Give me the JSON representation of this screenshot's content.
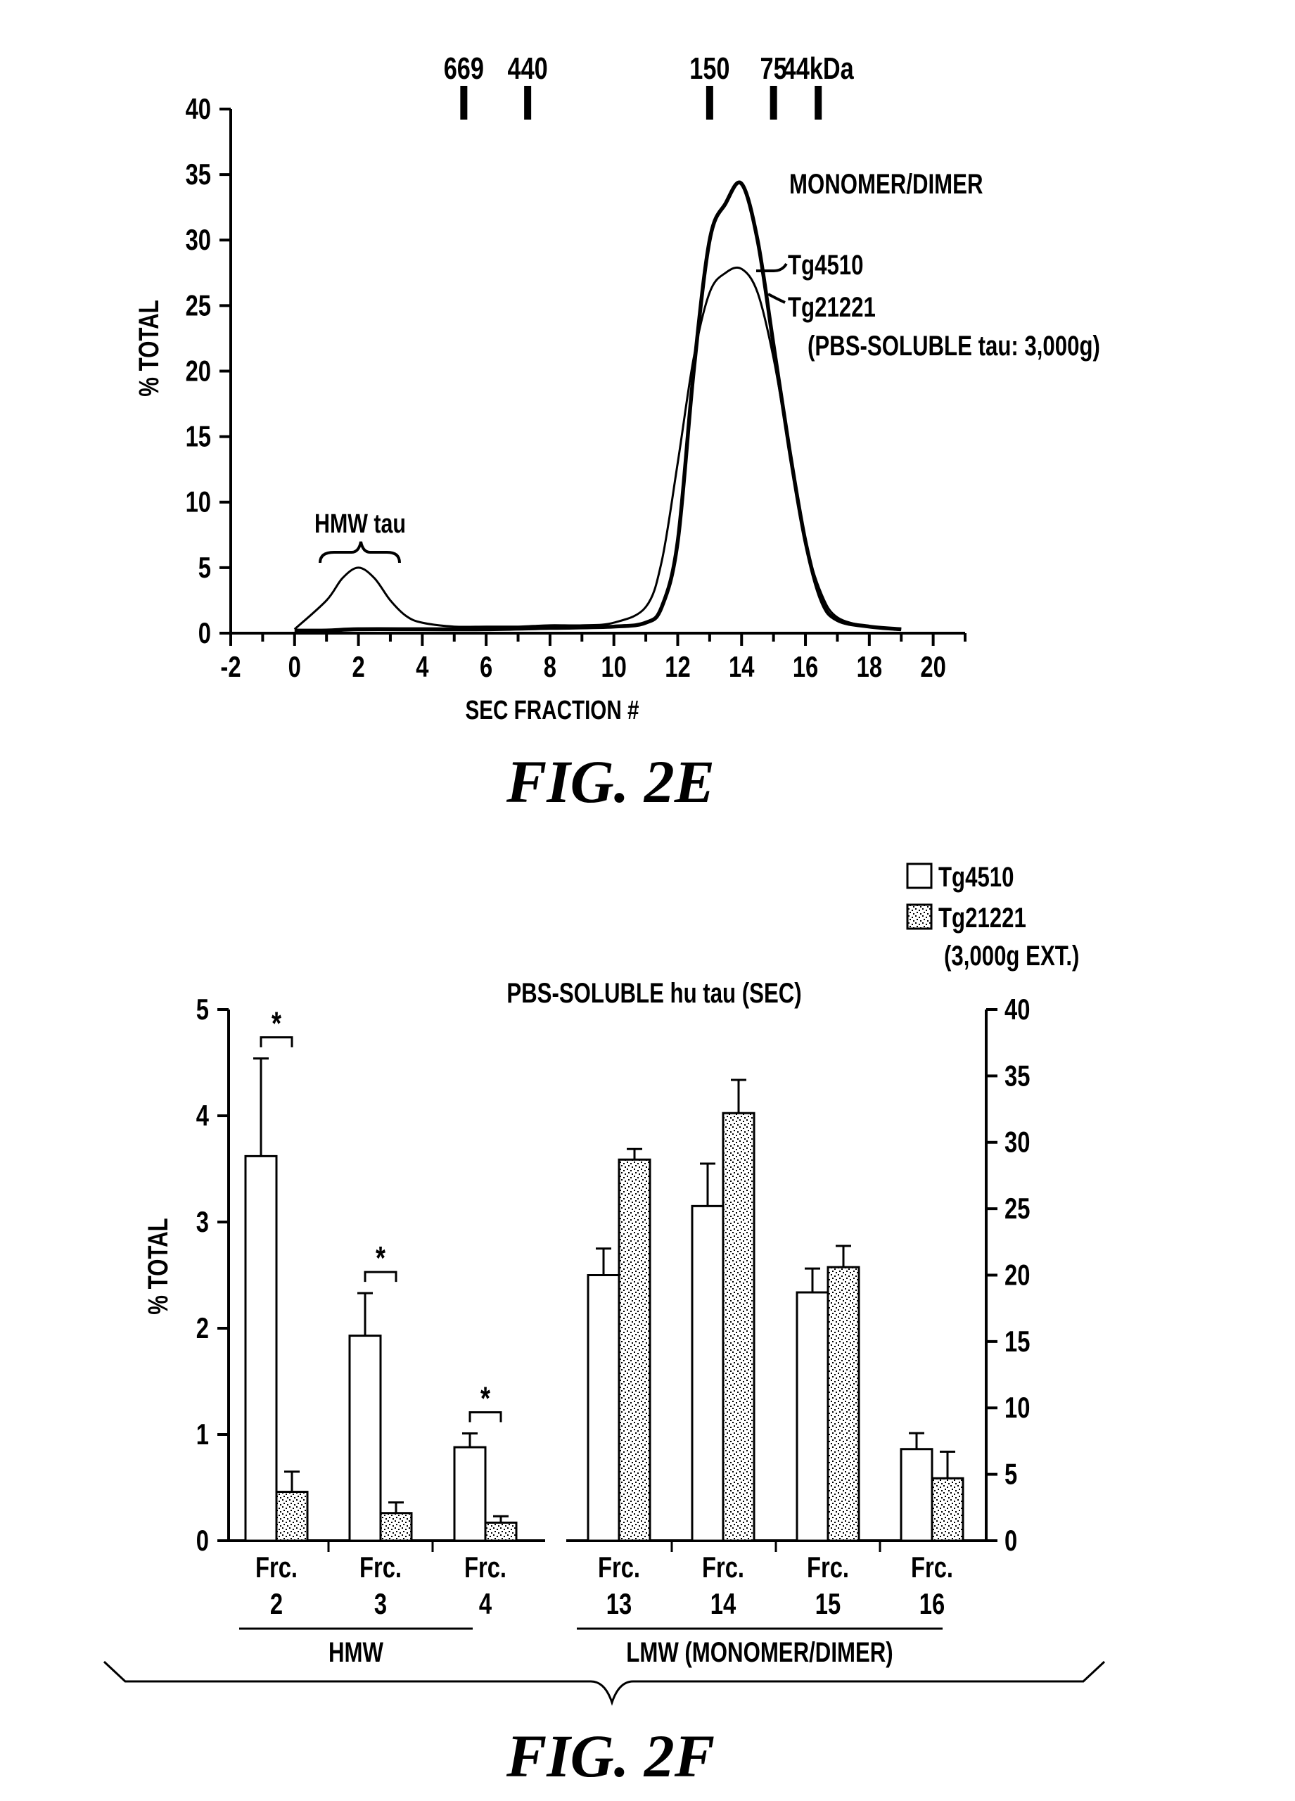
{
  "chart_data": [
    {
      "type": "line",
      "caption": "FIG. 2E",
      "xlabel": "SEC FRACTION #",
      "ylabel": "% TOTAL",
      "xlim": [
        -2,
        21
      ],
      "ylim": [
        0,
        40
      ],
      "x_ticks": [
        -2,
        0,
        2,
        4,
        6,
        8,
        10,
        12,
        14,
        16,
        18,
        20
      ],
      "y_ticks": [
        0,
        5,
        10,
        15,
        20,
        25,
        30,
        35,
        40
      ],
      "grid": false,
      "markers": [
        {
          "label": "669",
          "x": 5.3
        },
        {
          "label": "440",
          "x": 7.3
        },
        {
          "label": "150",
          "x": 13.0
        },
        {
          "label": "75",
          "x": 15.0
        },
        {
          "label": "44kDa",
          "x": 16.4
        }
      ],
      "annotations": {
        "hmw": "HMW tau",
        "peak": "MONOMER/DIMER",
        "series1_label": "Tg4510",
        "series2_label": "Tg21221",
        "series2_note": "(PBS-SOLUBLE tau: 3,000g)"
      },
      "series": [
        {
          "name": "Tg4510",
          "x": [
            0,
            1,
            1.5,
            2,
            2.5,
            3,
            3.5,
            4,
            5,
            6,
            7,
            8,
            9,
            10,
            11,
            11.5,
            12,
            12.5,
            13,
            13.5,
            14,
            14.5,
            15,
            15.5,
            16,
            16.5,
            17,
            18,
            19
          ],
          "y": [
            0.3,
            2.5,
            4.2,
            5.0,
            4.2,
            2.5,
            1.3,
            0.8,
            0.5,
            0.5,
            0.5,
            0.6,
            0.6,
            0.8,
            2.0,
            5.5,
            13.0,
            21.0,
            26.0,
            27.5,
            27.8,
            26.0,
            21.0,
            14.0,
            7.0,
            3.0,
            1.2,
            0.5,
            0.3
          ]
        },
        {
          "name": "Tg21221",
          "x": [
            0,
            1,
            2,
            4,
            6,
            8,
            10,
            11,
            11.5,
            12,
            12.5,
            13,
            13.5,
            14,
            14.5,
            15,
            15.5,
            16,
            16.5,
            17,
            18,
            19
          ],
          "y": [
            0.2,
            0.2,
            0.3,
            0.3,
            0.3,
            0.4,
            0.5,
            0.8,
            2.0,
            7.0,
            20.0,
            30.0,
            32.8,
            34.3,
            30.0,
            22.0,
            14.0,
            7.0,
            2.5,
            1.0,
            0.5,
            0.3
          ]
        }
      ]
    },
    {
      "type": "bar",
      "caption": "FIG. 2F",
      "title": "PBS-SOLUBLE hu tau (SEC)",
      "ylabel": "% TOTAL",
      "left_axis": {
        "ylim": [
          0,
          5
        ],
        "ticks": [
          0,
          1,
          2,
          3,
          4,
          5
        ]
      },
      "right_axis": {
        "ylim": [
          0,
          40
        ],
        "ticks": [
          0,
          5,
          10,
          15,
          20,
          25,
          30,
          35,
          40
        ]
      },
      "legend_position": "top-right",
      "legend": [
        {
          "label": "Tg4510"
        },
        {
          "label": "Tg21221",
          "sublabel": "(3,000g EXT.)"
        }
      ],
      "groups": [
        {
          "label": "HMW",
          "axis": "left",
          "categories": [
            {
              "line1": "Frc.",
              "line2": "2"
            },
            {
              "line1": "Frc.",
              "line2": "3"
            },
            {
              "line1": "Frc.",
              "line2": "4"
            }
          ]
        },
        {
          "label": "LMW (MONOMER/DIMER)",
          "axis": "right",
          "categories": [
            {
              "line1": "Frc.",
              "line2": "13"
            },
            {
              "line1": "Frc.",
              "line2": "14"
            },
            {
              "line1": "Frc.",
              "line2": "15"
            },
            {
              "line1": "Frc.",
              "line2": "16"
            }
          ]
        }
      ],
      "series": [
        {
          "name": "Tg4510",
          "values": [
            3.62,
            1.93,
            0.88,
            20.0,
            25.2,
            18.7,
            6.9
          ],
          "errors": [
            0.92,
            0.4,
            0.13,
            2.0,
            3.2,
            1.8,
            1.2
          ]
        },
        {
          "name": "Tg21221",
          "values": [
            0.46,
            0.26,
            0.17,
            28.7,
            32.2,
            20.6,
            4.7
          ],
          "errors": [
            0.19,
            0.1,
            0.06,
            0.8,
            2.5,
            1.6,
            2.0
          ]
        }
      ],
      "significance": [
        {
          "category": 0,
          "label": "*"
        },
        {
          "category": 1,
          "label": "*"
        },
        {
          "category": 2,
          "label": "*"
        }
      ]
    }
  ]
}
